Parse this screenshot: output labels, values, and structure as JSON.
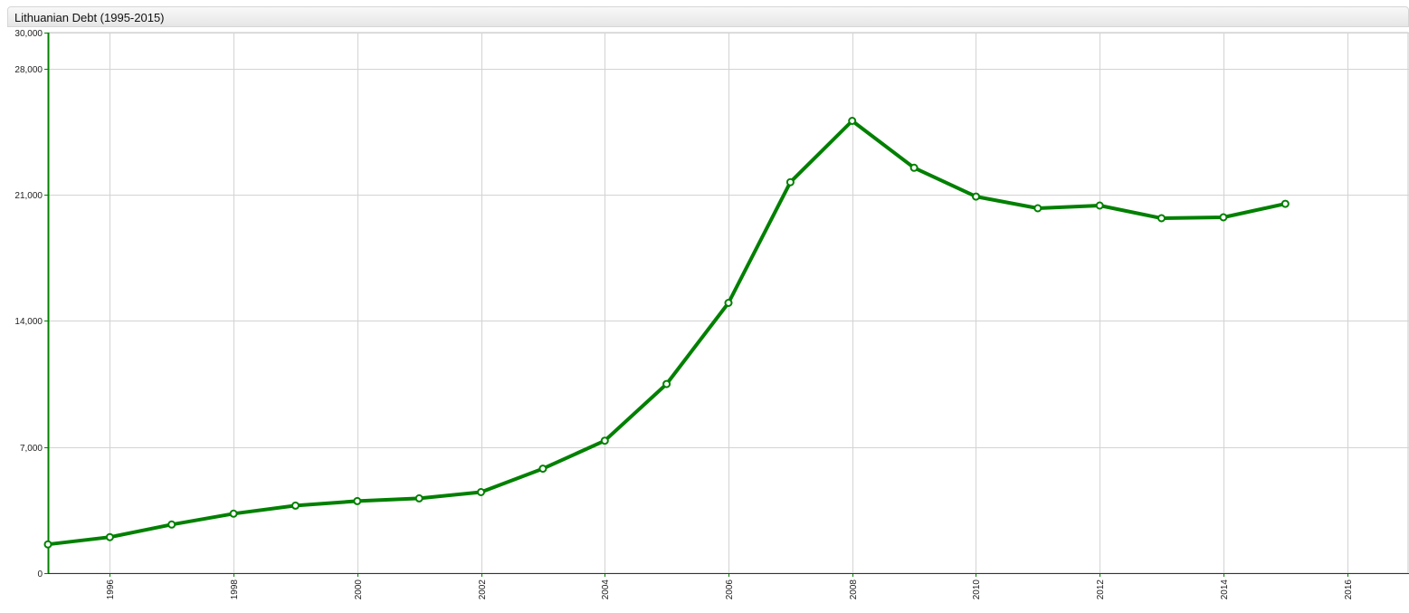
{
  "window": {
    "title": "Lithuanian Debt (1995-2015)"
  },
  "colors": {
    "series": "#008000",
    "grid": "#d3d3d3",
    "axis": "#008000",
    "marker_fill": "#ffffff"
  },
  "chart_data": {
    "type": "line",
    "title": "Lithuanian Debt (1995-2015)",
    "xlabel": "",
    "ylabel": "",
    "grid": true,
    "xlim": [
      1995,
      2017
    ],
    "ylim": [
      0,
      30000
    ],
    "x_ticks": [
      1996,
      1998,
      2000,
      2002,
      2004,
      2006,
      2008,
      2010,
      2012,
      2014,
      2016
    ],
    "x_tick_labels": [
      "1996",
      "1998",
      "2000",
      "2002",
      "2004",
      "2006",
      "2008",
      "2010",
      "2012",
      "2014",
      "2016"
    ],
    "y_ticks": [
      0,
      7000,
      14000,
      21000,
      28000,
      30000
    ],
    "y_tick_labels": [
      "0",
      "7,000",
      "14,000",
      "21,000",
      "28,000",
      "30,000"
    ],
    "series": [
      {
        "x": [
          1995,
          1996,
          1997,
          1998,
          1999,
          2000,
          2001,
          2002,
          2003,
          2004,
          2005,
          2006,
          2007,
          2008,
          2009,
          2010,
          2011,
          2012,
          2013,
          2014,
          2015
        ],
        "values": [
          1600,
          2000,
          2700,
          3300,
          3750,
          4000,
          4150,
          4500,
          5800,
          7350,
          10500,
          15000,
          21700,
          25100,
          22500,
          20900,
          20250,
          20400,
          19700,
          19750,
          20500
        ]
      }
    ]
  }
}
